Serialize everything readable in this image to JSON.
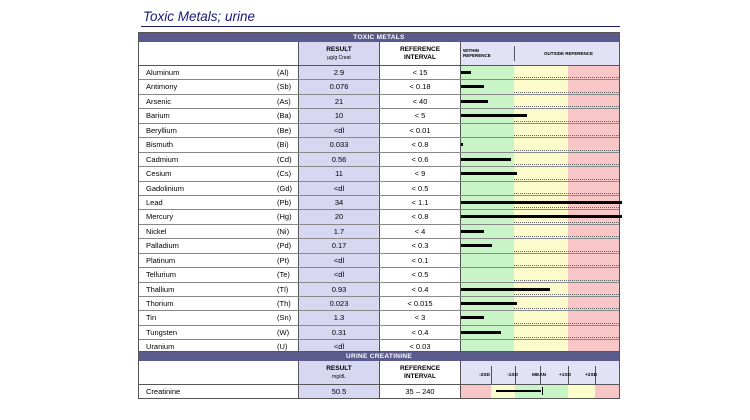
{
  "page": {
    "title": "Toxic Metals; urine"
  },
  "toxic": {
    "band": "TOXIC METALS",
    "headers": {
      "result": "RESULT",
      "result_unit": "µg/g Creat",
      "reference": "REFERENCE",
      "reference_sub": "INTERVAL",
      "within_1": "WITHIN",
      "within_2": "REFERENCE",
      "outside": "OUTSIDE REFERENCE"
    },
    "rows": [
      {
        "name": "Aluminum",
        "symbol": "(Al)",
        "result": "2.9",
        "reference": "< 15",
        "bar_fraction": 0.06
      },
      {
        "name": "Antimony",
        "symbol": "(Sb)",
        "result": "0.076",
        "reference": "< 0.18",
        "bar_fraction": 0.14
      },
      {
        "name": "Arsenic",
        "symbol": "(As)",
        "result": "21",
        "reference": "< 40",
        "bar_fraction": 0.17
      },
      {
        "name": "Barium",
        "symbol": "(Ba)",
        "result": "10",
        "reference": "< 5",
        "bar_fraction": 0.41
      },
      {
        "name": "Beryllium",
        "symbol": "(Be)",
        "result": "<dl",
        "reference": "< 0.01",
        "bar_fraction": 0
      },
      {
        "name": "Bismuth",
        "symbol": "(Bi)",
        "result": "0.033",
        "reference": "< 0.8",
        "bar_fraction": 0.01
      },
      {
        "name": "Cadmium",
        "symbol": "(Cd)",
        "result": "0.56",
        "reference": "< 0.6",
        "bar_fraction": 0.31
      },
      {
        "name": "Cesium",
        "symbol": "(Cs)",
        "result": "11",
        "reference": "< 9",
        "bar_fraction": 0.35
      },
      {
        "name": "Gadolinium",
        "symbol": "(Gd)",
        "result": "<dl",
        "reference": "< 0.5",
        "bar_fraction": 0
      },
      {
        "name": "Lead",
        "symbol": "(Pb)",
        "result": "34",
        "reference": "< 1.1",
        "bar_fraction": 1.0
      },
      {
        "name": "Mercury",
        "symbol": "(Hg)",
        "result": "20",
        "reference": "< 0.8",
        "bar_fraction": 1.0
      },
      {
        "name": "Nickel",
        "symbol": "(Ni)",
        "result": "1.7",
        "reference": "< 4",
        "bar_fraction": 0.14
      },
      {
        "name": "Palladium",
        "symbol": "(Pd)",
        "result": "0.17",
        "reference": "< 0.3",
        "bar_fraction": 0.19
      },
      {
        "name": "Platinum",
        "symbol": "(Pt)",
        "result": "<dl",
        "reference": "< 0.1",
        "bar_fraction": 0
      },
      {
        "name": "Tellurium",
        "symbol": "(Te)",
        "result": "<dl",
        "reference": "< 0.5",
        "bar_fraction": 0
      },
      {
        "name": "Thallium",
        "symbol": "(Tl)",
        "result": "0.93",
        "reference": "< 0.4",
        "bar_fraction": 0.55
      },
      {
        "name": "Thorium",
        "symbol": "(Th)",
        "result": "0.023",
        "reference": "< 0.015",
        "bar_fraction": 0.35
      },
      {
        "name": "Tin",
        "symbol": "(Sn)",
        "result": "1.3",
        "reference": "< 3",
        "bar_fraction": 0.14
      },
      {
        "name": "Tungsten",
        "symbol": "(W)",
        "result": "0.31",
        "reference": "< 0.4",
        "bar_fraction": 0.25
      },
      {
        "name": "Uranium",
        "symbol": "(U)",
        "result": "<dl",
        "reference": "< 0.03",
        "bar_fraction": 0
      }
    ]
  },
  "creatinine": {
    "band": "URINE CREATININE",
    "headers": {
      "result": "RESULT",
      "result_unit": "mg/dL",
      "reference": "REFERENCE",
      "reference_sub": "INTERVAL"
    },
    "scale_labels": [
      "-2SD",
      "-1SD",
      "MEAN",
      "+1SD",
      "+2SD"
    ],
    "row": {
      "name": "Creatinine",
      "result": "50.5",
      "reference": "35 – 240",
      "bar_start_fraction": 0.22,
      "bar_end_fraction": 0.5
    }
  },
  "colors": {
    "within": "#c8f4c8",
    "caution": "#fbfbcb",
    "outside": "#f8c6c6",
    "header_band": "#5a5a8c",
    "result_col": "#d7d7f1"
  }
}
